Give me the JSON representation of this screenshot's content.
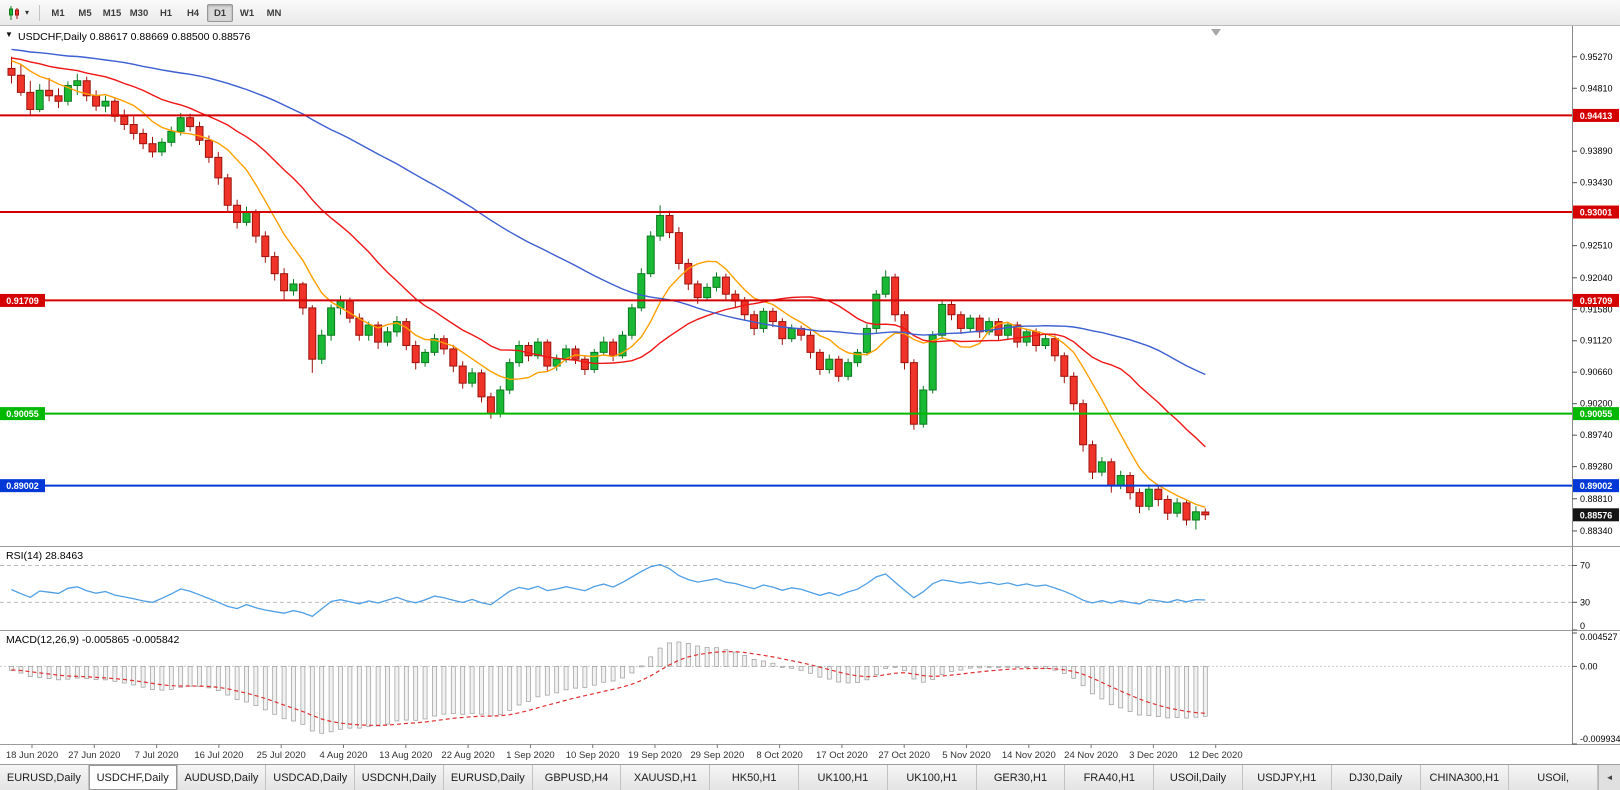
{
  "toolbar": {
    "chart_icon": "candlestick-chart-icon",
    "dropdown_icon": "▾",
    "timeframes": [
      "M1",
      "M5",
      "M15",
      "M30",
      "H1",
      "H4",
      "D1",
      "W1",
      "MN"
    ],
    "active_timeframe": "D1"
  },
  "chart": {
    "title": "USDCHF,Daily 0.88617 0.88669 0.88500 0.88576",
    "symbol": "USDCHF",
    "period": "Daily",
    "open": "0.88617",
    "high": "0.88669",
    "low": "0.88500",
    "close": "0.88576",
    "one_click_icon": "▼"
  },
  "rsi_panel": {
    "label": "RSI(14) 28.8463",
    "axis": [
      {
        "label": "70",
        "value": 70
      },
      {
        "label": "30",
        "value": 30
      },
      {
        "label": "0",
        "value": 0
      }
    ]
  },
  "macd_panel": {
    "label": "MACD(12,26,9) -0.005865 -0.005842",
    "axis": [
      {
        "label": "0.004527",
        "value": 0.004527
      },
      {
        "label": "0.00",
        "value": 0
      },
      {
        "label": "-0.009934",
        "value": -0.009934
      }
    ]
  },
  "price_axis": {
    "ticks": [
      "0.95270",
      "0.94810",
      "0.93890",
      "0.93430",
      "0.92510",
      "0.92040",
      "0.91580",
      "0.91120",
      "0.90660",
      "0.90200",
      "0.89740",
      "0.89280",
      "0.88810",
      "0.88340"
    ],
    "current": "0.88576"
  },
  "date_axis": [
    "18 Jun 2020",
    "27 Jun 2020",
    "7 Jul 2020",
    "16 Jul 2020",
    "25 Jul 2020",
    "4 Aug 2020",
    "13 Aug 2020",
    "22 Aug 2020",
    "1 Sep 2020",
    "10 Sep 2020",
    "19 Sep 2020",
    "29 Sep 2020",
    "8 Oct 2020",
    "17 Oct 2020",
    "27 Oct 2020",
    "5 Nov 2020",
    "14 Nov 2020",
    "24 Nov 2020",
    "3 Dec 2020",
    "12 Dec 2020"
  ],
  "tabs": {
    "items": [
      {
        "label": "EURUSD,Daily",
        "active": false
      },
      {
        "label": "USDCHF,Daily",
        "active": true
      },
      {
        "label": "AUDUSD,Daily",
        "active": false
      },
      {
        "label": "USDCAD,Daily",
        "active": false
      },
      {
        "label": "USDCNH,Daily",
        "active": false
      },
      {
        "label": "EURUSD,Daily",
        "active": false
      },
      {
        "label": "GBPUSD,H4",
        "active": false
      },
      {
        "label": "XAUUSD,H1",
        "active": false
      },
      {
        "label": "HK50,H1",
        "active": false
      },
      {
        "label": "UK100,H1",
        "active": false
      },
      {
        "label": "UK100,H1",
        "active": false
      },
      {
        "label": "GER30,H1",
        "active": false
      },
      {
        "label": "FRA40,H1",
        "active": false
      },
      {
        "label": "USOil,Daily",
        "active": false
      },
      {
        "label": "USDJPY,H1",
        "active": false
      },
      {
        "label": "DJ30,Daily",
        "active": false
      },
      {
        "label": "CHINA300,H1",
        "active": false
      },
      {
        "label": "USOil,",
        "active": false
      }
    ],
    "scroll_icon": "◄"
  },
  "chart_data": {
    "type": "candlestick",
    "symbol": "USDCHF",
    "timeframe": "Daily",
    "y_range": [
      0.8812,
      0.9572
    ],
    "colors": {
      "up_fill": "#19b835",
      "up_stroke": "#0c7a1f",
      "down_fill": "#f0342a",
      "down_stroke": "#9c120c",
      "rsi_line": "#4f9fe6",
      "macd_signal": "#e03030",
      "macd_fill": "#f2f2f2",
      "macd_stroke": "#a0a0a0"
    },
    "moving_averages": [
      {
        "name": "fast-ma",
        "period": 8,
        "color": "#ff9f00"
      },
      {
        "name": "medium-ma",
        "period": 21,
        "color": "#f01515"
      },
      {
        "name": "slow-ma",
        "period": 55,
        "color": "#3c5fd2"
      }
    ],
    "hlines": [
      {
        "price": 0.94413,
        "label": "0.94413",
        "color": "#d40000",
        "left_label": false
      },
      {
        "price": 0.93001,
        "label": "0.93001",
        "color": "#d40000",
        "left_label": false
      },
      {
        "price": 0.91709,
        "label": "0.91709",
        "color": "#d40000",
        "left_label": true
      },
      {
        "price": 0.90055,
        "label": "0.90055",
        "color": "#00b800",
        "left_label": true
      },
      {
        "price": 0.89002,
        "label": "0.89002",
        "color": "#0038d8",
        "left_label": true
      }
    ],
    "rsi": {
      "period": 14,
      "value": 28.8463,
      "levels": [
        70,
        30
      ]
    },
    "macd": {
      "fast": 12,
      "slow": 26,
      "signal": 9,
      "value": -0.005865,
      "signal_value": -0.005842,
      "range": [
        -0.009934,
        0.004527
      ]
    },
    "candles": [
      [
        0.951,
        0.9527,
        0.9488,
        0.95
      ],
      [
        0.95,
        0.9516,
        0.947,
        0.9475
      ],
      [
        0.9475,
        0.9492,
        0.9441,
        0.945
      ],
      [
        0.945,
        0.9487,
        0.9446,
        0.9478
      ],
      [
        0.9478,
        0.9496,
        0.9462,
        0.947
      ],
      [
        0.947,
        0.9481,
        0.9452,
        0.9462
      ],
      [
        0.9462,
        0.9491,
        0.9456,
        0.9485
      ],
      [
        0.9485,
        0.9502,
        0.9471,
        0.9492
      ],
      [
        0.9492,
        0.9498,
        0.9462,
        0.947
      ],
      [
        0.947,
        0.9478,
        0.9448,
        0.9455
      ],
      [
        0.9455,
        0.947,
        0.9446,
        0.9462
      ],
      [
        0.9462,
        0.9466,
        0.9432,
        0.944
      ],
      [
        0.944,
        0.945,
        0.942,
        0.9428
      ],
      [
        0.9428,
        0.944,
        0.9406,
        0.9415
      ],
      [
        0.9415,
        0.9422,
        0.9392,
        0.94
      ],
      [
        0.94,
        0.941,
        0.938,
        0.9388
      ],
      [
        0.9388,
        0.9408,
        0.9382,
        0.9402
      ],
      [
        0.9402,
        0.9425,
        0.9396,
        0.9418
      ],
      [
        0.9418,
        0.9445,
        0.9412,
        0.9438
      ],
      [
        0.9438,
        0.9444,
        0.9418,
        0.9425
      ],
      [
        0.9425,
        0.9432,
        0.9398,
        0.9405
      ],
      [
        0.9405,
        0.9412,
        0.9372,
        0.938
      ],
      [
        0.938,
        0.9388,
        0.934,
        0.935
      ],
      [
        0.935,
        0.9356,
        0.93,
        0.931
      ],
      [
        0.931,
        0.9318,
        0.9276,
        0.9285
      ],
      [
        0.9285,
        0.9308,
        0.928,
        0.93
      ],
      [
        0.93,
        0.9304,
        0.9255,
        0.9265
      ],
      [
        0.9265,
        0.9272,
        0.9226,
        0.9235
      ],
      [
        0.9235,
        0.9242,
        0.92,
        0.921
      ],
      [
        0.921,
        0.9218,
        0.9171,
        0.9185
      ],
      [
        0.9185,
        0.9202,
        0.9178,
        0.9195
      ],
      [
        0.9195,
        0.9198,
        0.915,
        0.916
      ],
      [
        0.916,
        0.9164,
        0.9065,
        0.9085
      ],
      [
        0.9085,
        0.9128,
        0.9078,
        0.912
      ],
      [
        0.912,
        0.9165,
        0.9112,
        0.916
      ],
      [
        0.916,
        0.9178,
        0.915,
        0.917
      ],
      [
        0.917,
        0.9175,
        0.9138,
        0.9145
      ],
      [
        0.9145,
        0.9152,
        0.9112,
        0.912
      ],
      [
        0.912,
        0.914,
        0.9112,
        0.9135
      ],
      [
        0.9135,
        0.914,
        0.91,
        0.911
      ],
      [
        0.911,
        0.9132,
        0.9104,
        0.9125
      ],
      [
        0.9125,
        0.9148,
        0.9118,
        0.914
      ],
      [
        0.914,
        0.9145,
        0.9098,
        0.9105
      ],
      [
        0.9105,
        0.9112,
        0.907,
        0.908
      ],
      [
        0.908,
        0.91,
        0.9074,
        0.9095
      ],
      [
        0.9095,
        0.9122,
        0.909,
        0.9115
      ],
      [
        0.9115,
        0.912,
        0.9092,
        0.91
      ],
      [
        0.91,
        0.9106,
        0.9066,
        0.9075
      ],
      [
        0.9075,
        0.9082,
        0.9042,
        0.905
      ],
      [
        0.905,
        0.9072,
        0.9044,
        0.9065
      ],
      [
        0.9065,
        0.907,
        0.9022,
        0.903
      ],
      [
        0.903,
        0.9036,
        0.8998,
        0.9005
      ],
      [
        0.9005,
        0.9046,
        0.9,
        0.904
      ],
      [
        0.904,
        0.9086,
        0.9034,
        0.908
      ],
      [
        0.908,
        0.9112,
        0.9074,
        0.9105
      ],
      [
        0.9105,
        0.911,
        0.9082,
        0.909
      ],
      [
        0.909,
        0.9116,
        0.9085,
        0.911
      ],
      [
        0.911,
        0.9114,
        0.9068,
        0.9075
      ],
      [
        0.9075,
        0.9092,
        0.9068,
        0.9085
      ],
      [
        0.9085,
        0.9106,
        0.908,
        0.91
      ],
      [
        0.91,
        0.9105,
        0.9078,
        0.9085
      ],
      [
        0.9085,
        0.909,
        0.9062,
        0.907
      ],
      [
        0.907,
        0.91,
        0.9065,
        0.9095
      ],
      [
        0.9095,
        0.9118,
        0.909,
        0.911
      ],
      [
        0.911,
        0.9115,
        0.9082,
        0.909
      ],
      [
        0.909,
        0.9126,
        0.9086,
        0.912
      ],
      [
        0.912,
        0.9166,
        0.9114,
        0.916
      ],
      [
        0.916,
        0.9218,
        0.9155,
        0.921
      ],
      [
        0.921,
        0.9272,
        0.9205,
        0.9265
      ],
      [
        0.9265,
        0.931,
        0.9258,
        0.9295
      ],
      [
        0.9295,
        0.9302,
        0.9262,
        0.927
      ],
      [
        0.927,
        0.9278,
        0.9216,
        0.9225
      ],
      [
        0.9225,
        0.9232,
        0.9186,
        0.9195
      ],
      [
        0.9195,
        0.92,
        0.9166,
        0.9175
      ],
      [
        0.9175,
        0.9196,
        0.917,
        0.919
      ],
      [
        0.919,
        0.9212,
        0.9184,
        0.9205
      ],
      [
        0.9205,
        0.921,
        0.9172,
        0.918
      ],
      [
        0.918,
        0.9186,
        0.916,
        0.917
      ],
      [
        0.917,
        0.9176,
        0.9142,
        0.915
      ],
      [
        0.915,
        0.9156,
        0.912,
        0.913
      ],
      [
        0.913,
        0.916,
        0.9124,
        0.9155
      ],
      [
        0.9155,
        0.916,
        0.9132,
        0.914
      ],
      [
        0.914,
        0.9145,
        0.9106,
        0.9115
      ],
      [
        0.9115,
        0.9136,
        0.911,
        0.913
      ],
      [
        0.913,
        0.9134,
        0.9112,
        0.912
      ],
      [
        0.912,
        0.9126,
        0.9086,
        0.9095
      ],
      [
        0.9095,
        0.91,
        0.9062,
        0.907
      ],
      [
        0.907,
        0.9092,
        0.9064,
        0.9085
      ],
      [
        0.9085,
        0.909,
        0.9052,
        0.906
      ],
      [
        0.906,
        0.9086,
        0.9054,
        0.908
      ],
      [
        0.908,
        0.91,
        0.9074,
        0.9095
      ],
      [
        0.9095,
        0.9136,
        0.909,
        0.913
      ],
      [
        0.913,
        0.9186,
        0.9124,
        0.918
      ],
      [
        0.918,
        0.9215,
        0.9175,
        0.9205
      ],
      [
        0.9205,
        0.921,
        0.914,
        0.915
      ],
      [
        0.915,
        0.9155,
        0.907,
        0.908
      ],
      [
        0.908,
        0.9085,
        0.8982,
        0.899
      ],
      [
        0.899,
        0.9046,
        0.8985,
        0.904
      ],
      [
        0.904,
        0.9126,
        0.9035,
        0.912
      ],
      [
        0.912,
        0.917,
        0.9114,
        0.9165
      ],
      [
        0.9165,
        0.9172,
        0.9142,
        0.915
      ],
      [
        0.915,
        0.9155,
        0.9122,
        0.913
      ],
      [
        0.913,
        0.915,
        0.9124,
        0.9145
      ],
      [
        0.9145,
        0.915,
        0.9116,
        0.9125
      ],
      [
        0.9125,
        0.9146,
        0.912,
        0.914
      ],
      [
        0.914,
        0.9145,
        0.9112,
        0.912
      ],
      [
        0.912,
        0.914,
        0.9114,
        0.9135
      ],
      [
        0.9135,
        0.914,
        0.9102,
        0.911
      ],
      [
        0.911,
        0.913,
        0.9104,
        0.9125
      ],
      [
        0.9125,
        0.913,
        0.9096,
        0.9105
      ],
      [
        0.9105,
        0.9122,
        0.91,
        0.9115
      ],
      [
        0.9115,
        0.912,
        0.9082,
        0.909
      ],
      [
        0.909,
        0.9095,
        0.905,
        0.906
      ],
      [
        0.906,
        0.9066,
        0.901,
        0.902
      ],
      [
        0.902,
        0.9026,
        0.895,
        0.896
      ],
      [
        0.896,
        0.8966,
        0.891,
        0.892
      ],
      [
        0.892,
        0.8942,
        0.8914,
        0.8935
      ],
      [
        0.8935,
        0.894,
        0.889,
        0.89
      ],
      [
        0.89,
        0.8922,
        0.8895,
        0.8915
      ],
      [
        0.8915,
        0.892,
        0.888,
        0.889
      ],
      [
        0.889,
        0.8896,
        0.886,
        0.887
      ],
      [
        0.887,
        0.8902,
        0.8864,
        0.8895
      ],
      [
        0.8895,
        0.89,
        0.887,
        0.888
      ],
      [
        0.888,
        0.8886,
        0.885,
        0.886
      ],
      [
        0.886,
        0.8882,
        0.8854,
        0.8875
      ],
      [
        0.8875,
        0.888,
        0.8842,
        0.885
      ],
      [
        0.885,
        0.887,
        0.8836,
        0.8862
      ],
      [
        0.88617,
        0.88669,
        0.885,
        0.88576
      ]
    ]
  }
}
